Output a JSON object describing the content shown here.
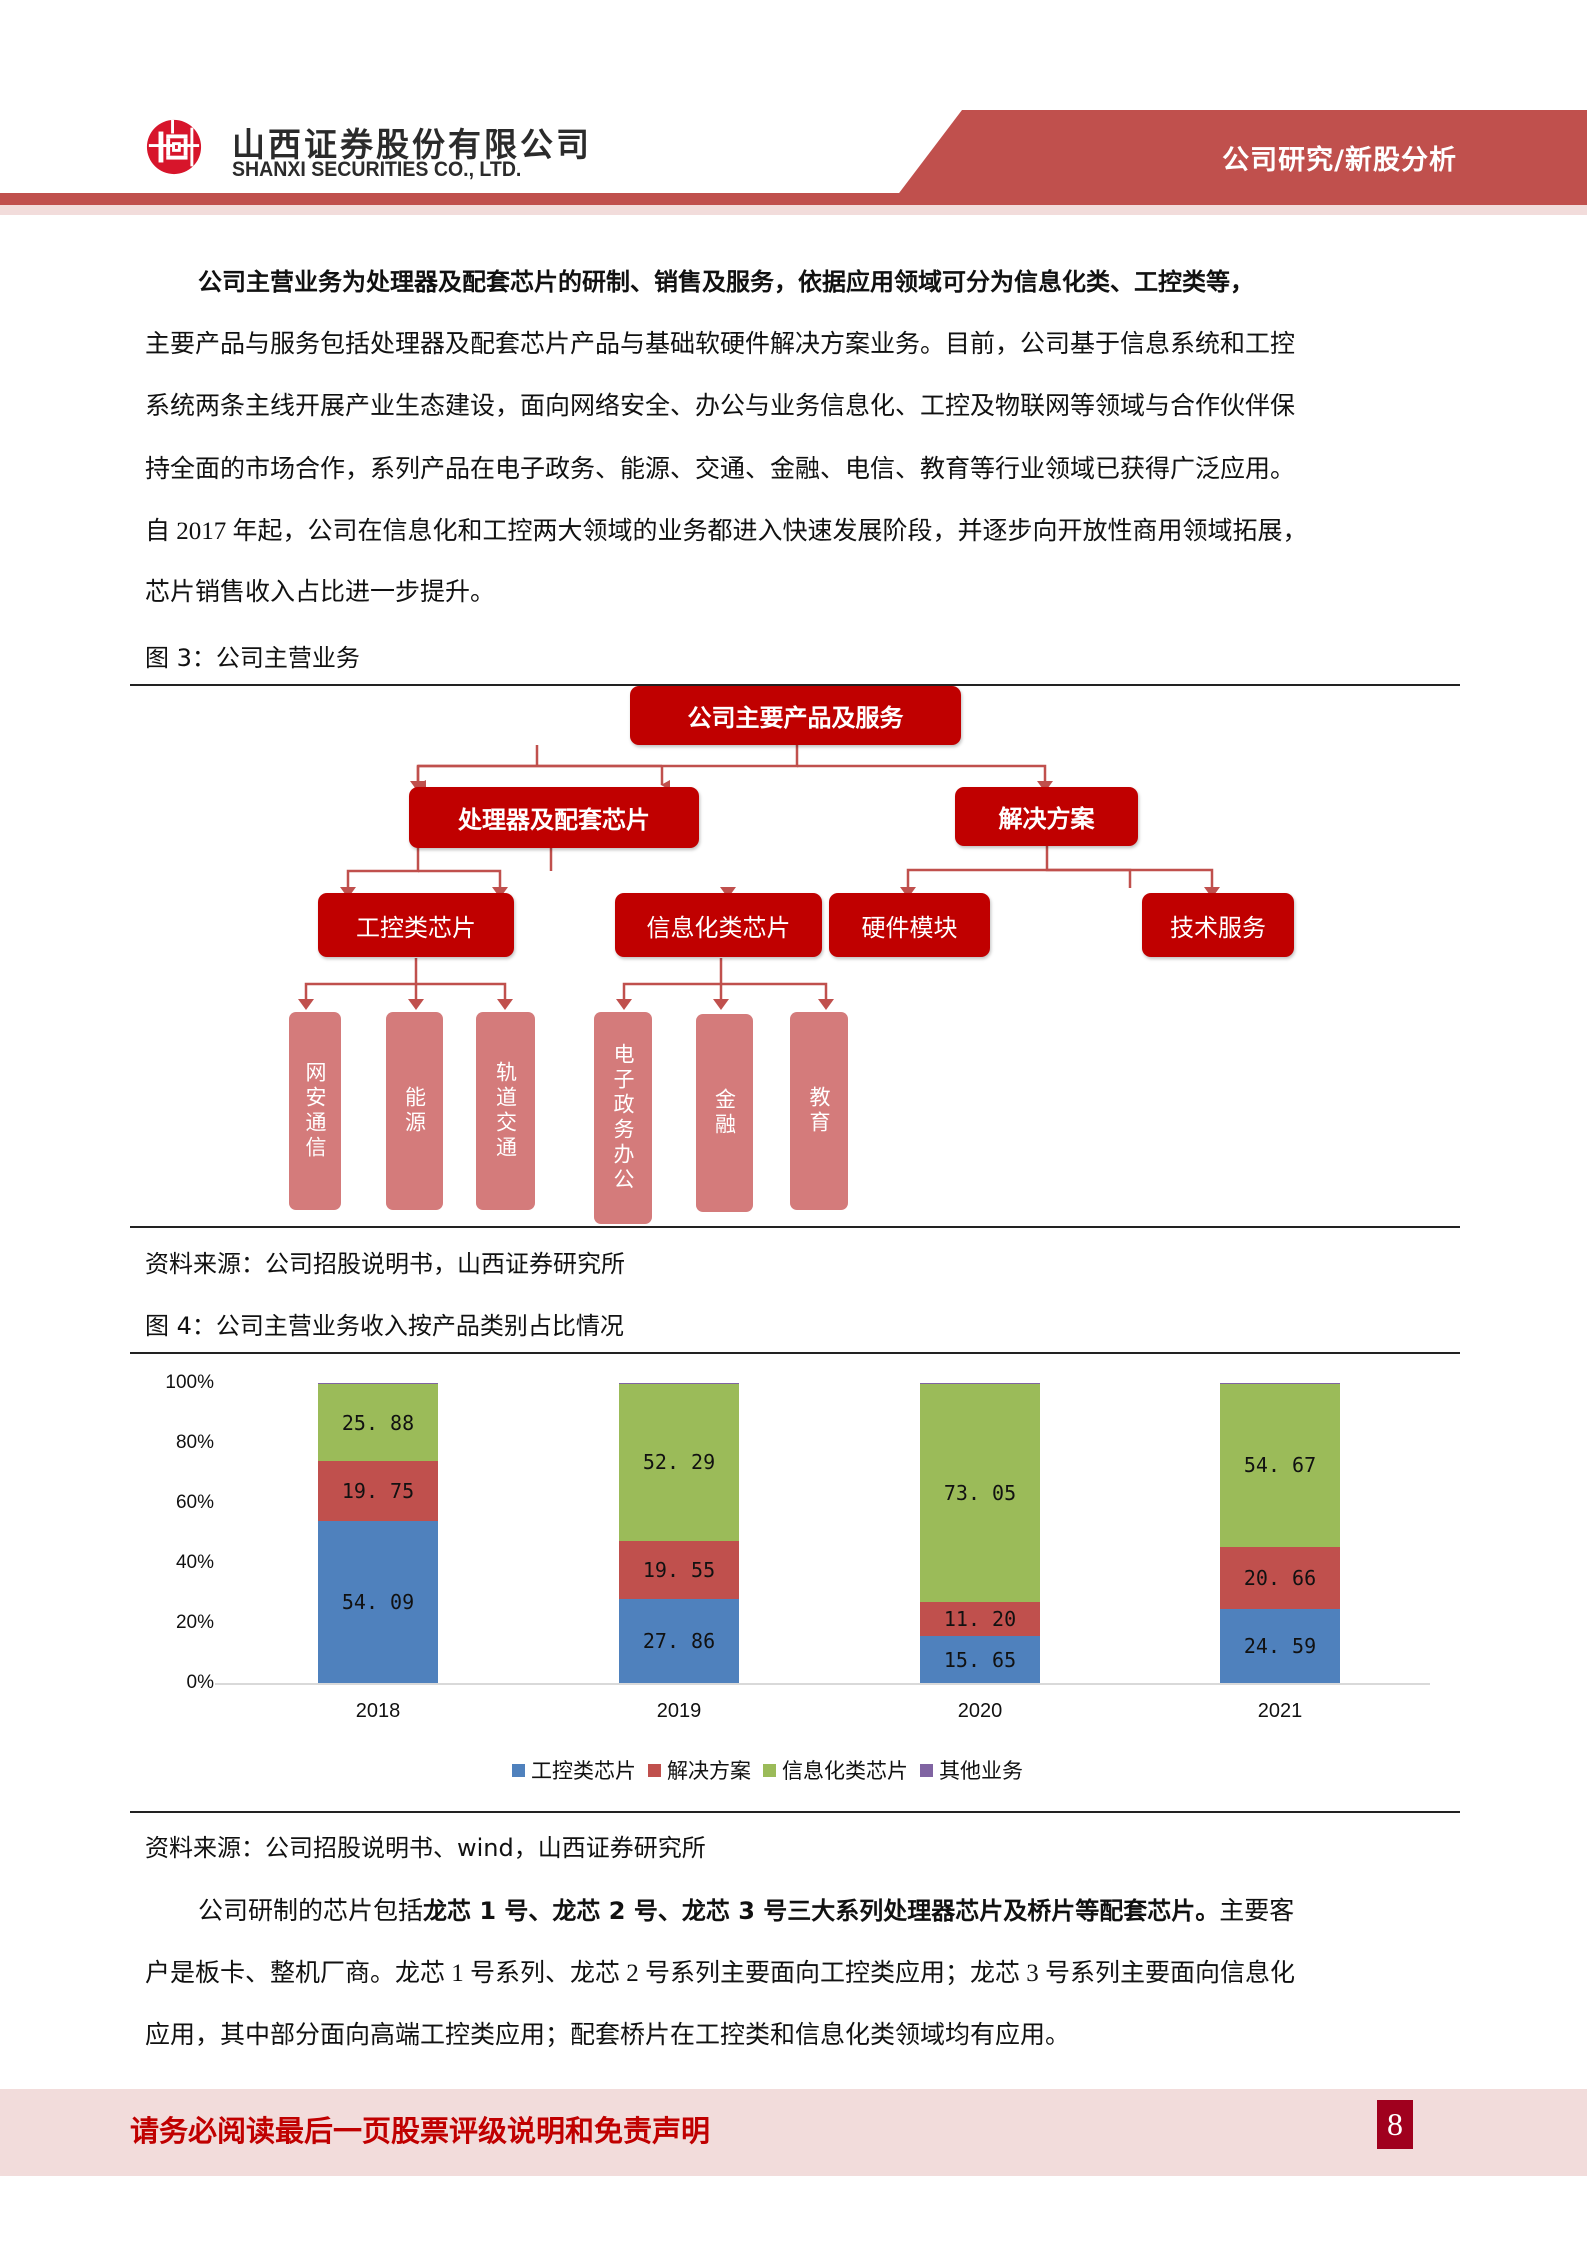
{
  "header": {
    "company_cn": "山西证券股份有限公司",
    "company_en": "SHANXI SECURITIES CO., LTD.",
    "section_tag": "公司研究/新股分析",
    "logo_icon": "shanxi-securities-logo",
    "brand_color": "#c0504d"
  },
  "intro_paragraph": {
    "lines": [
      "公司主营业务为处理器及配套芯片的研制、销售及服务，依据应用领域可分为信息化类、工控类等，",
      "主要产品与服务包括处理器及配套芯片产品与基础软硬件解决方案业务。目前，公司基于信息系统和工控",
      "系统两条主线开展产业生态建设，面向网络安全、办公与业务信息化、工控及物联网等领域与合作伙伴保",
      "持全面的市场合作，系列产品在电子政务、能源、交通、金融、电信、教育等行业领域已获得广泛应用。",
      "自 2017 年起，公司在信息化和工控两大领域的业务都进入快速发展阶段，并逐步向开放性商用领域拓展，",
      "芯片销售收入占比进一步提升。"
    ]
  },
  "figure3": {
    "caption": "图 3：公司主营业务",
    "source": "资料来源：公司招股说明书，山西证券研究所",
    "root": "公司主要产品及服务",
    "level1": [
      "处理器及配套芯片",
      "解决方案"
    ],
    "level2": [
      "工控类芯片",
      "信息化类芯片",
      "硬件模块",
      "技术服务"
    ],
    "leaves": [
      "网安通信",
      "能源",
      "轨道交通",
      "电子政务办公",
      "金融",
      "教育"
    ]
  },
  "figure4": {
    "caption": "图 4：公司主营业务收入按产品类别占比情况",
    "source": "资料来源：公司招股说明书、wind，山西证券研究所"
  },
  "chart_data": {
    "type": "bar",
    "stacked": true,
    "title": "公司主营业务收入按产品类别占比情况",
    "categories": [
      "2018",
      "2019",
      "2020",
      "2021"
    ],
    "series": [
      {
        "name": "工控类芯片",
        "color": "#4f81bd",
        "values": [
          54.09,
          27.86,
          15.65,
          24.59
        ],
        "labels": [
          "54.09",
          "27.86",
          "15.65",
          "24.59"
        ]
      },
      {
        "name": "解决方案",
        "color": "#c0504d",
        "values": [
          19.75,
          19.55,
          11.2,
          20.66
        ],
        "labels": [
          "19.75",
          "19.55",
          "11.20",
          "20.66"
        ]
      },
      {
        "name": "信息化类芯片",
        "color": "#9bbb59",
        "values": [
          25.88,
          52.29,
          73.05,
          54.67
        ],
        "labels": [
          "25.88",
          "52.29",
          "73.05",
          "54.67"
        ]
      },
      {
        "name": "其他业务",
        "color": "#8064a2",
        "values": [
          0.28,
          0.3,
          0.1,
          0.08
        ],
        "labels": [
          "",
          "",
          "",
          ""
        ]
      }
    ],
    "yticks": [
      "0%",
      "20%",
      "40%",
      "60%",
      "80%",
      "100%"
    ],
    "ylim": [
      0,
      100
    ],
    "xlabel": "",
    "ylabel": "",
    "grid": false,
    "legend_position": "bottom"
  },
  "closing_paragraph": {
    "line1_pre": "公司研制的芯片包括",
    "line1_bold": "龙芯 1 号、龙芯 2 号、龙芯 3 号三大系列处理器芯片及桥片等配套芯片。",
    "line1_post": "主要客",
    "line2": "户是板卡、整机厂商。龙芯 1 号系列、龙芯 2 号系列主要面向工控类应用；龙芯 3 号系列主要面向信息化",
    "line3": "应用，其中部分面向高端工控类应用；配套桥片在工控类和信息化类领域均有应用。"
  },
  "footer": {
    "disclaimer": "请务必阅读最后一页股票评级说明和免责声明",
    "page_number": "8"
  }
}
